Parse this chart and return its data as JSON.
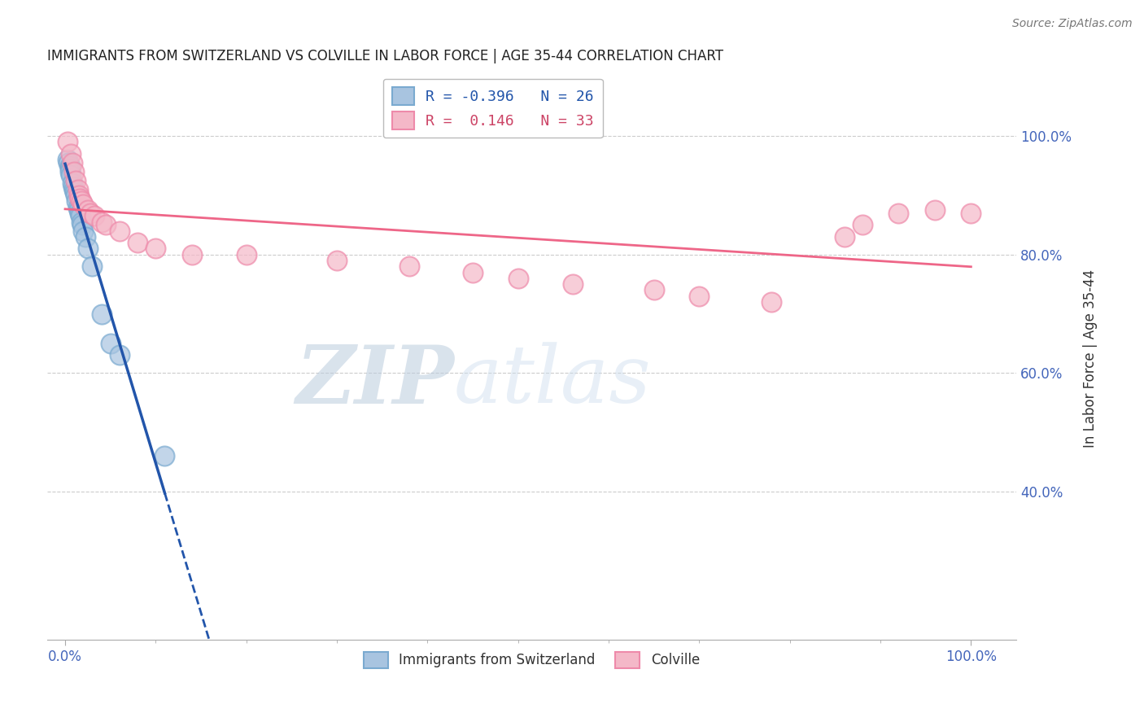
{
  "title": "IMMIGRANTS FROM SWITZERLAND VS COLVILLE IN LABOR FORCE | AGE 35-44 CORRELATION CHART",
  "source": "Source: ZipAtlas.com",
  "ylabel": "In Labor Force | Age 35-44",
  "legend_R": [
    -0.396,
    0.146
  ],
  "legend_N": [
    26,
    33
  ],
  "blue_color": "#A8C4E0",
  "pink_color": "#F4B8C8",
  "blue_edge_color": "#7AAAD0",
  "pink_edge_color": "#EE8AAA",
  "blue_line_color": "#2255AA",
  "pink_line_color": "#EE6688",
  "watermark_zip": "ZIP",
  "watermark_atlas": "atlas",
  "blue_points_x": [
    0.003,
    0.004,
    0.005,
    0.005,
    0.005,
    0.006,
    0.008,
    0.009,
    0.01,
    0.011,
    0.012,
    0.013,
    0.014,
    0.015,
    0.016,
    0.017,
    0.018,
    0.019,
    0.02,
    0.022,
    0.025,
    0.03,
    0.04,
    0.05,
    0.06,
    0.11
  ],
  "blue_points_y": [
    0.96,
    0.955,
    0.95,
    0.945,
    0.94,
    0.935,
    0.92,
    0.915,
    0.91,
    0.905,
    0.9,
    0.89,
    0.88,
    0.875,
    0.87,
    0.865,
    0.855,
    0.85,
    0.84,
    0.83,
    0.81,
    0.78,
    0.7,
    0.65,
    0.63,
    0.46
  ],
  "pink_points_x": [
    0.003,
    0.006,
    0.008,
    0.01,
    0.012,
    0.014,
    0.015,
    0.016,
    0.018,
    0.02,
    0.025,
    0.028,
    0.032,
    0.04,
    0.045,
    0.06,
    0.08,
    0.1,
    0.14,
    0.2,
    0.3,
    0.38,
    0.45,
    0.5,
    0.56,
    0.65,
    0.7,
    0.78,
    0.86,
    0.88,
    0.92,
    0.96,
    1.0
  ],
  "pink_points_y": [
    0.99,
    0.97,
    0.955,
    0.94,
    0.925,
    0.91,
    0.9,
    0.895,
    0.89,
    0.885,
    0.875,
    0.87,
    0.865,
    0.855,
    0.85,
    0.84,
    0.82,
    0.81,
    0.8,
    0.8,
    0.79,
    0.78,
    0.77,
    0.76,
    0.75,
    0.74,
    0.73,
    0.72,
    0.83,
    0.85,
    0.87,
    0.875,
    0.87
  ],
  "xmin": -0.02,
  "xmax": 1.05,
  "ymin": 0.15,
  "ymax": 1.1,
  "yticks": [
    0.4,
    0.6,
    0.8,
    1.0
  ],
  "ytick_labels": [
    "40.0%",
    "60.0%",
    "80.0%",
    "100.0%"
  ],
  "xtick_positions": [
    0.0,
    1.0
  ],
  "xtick_labels": [
    "0.0%",
    "100.0%"
  ]
}
